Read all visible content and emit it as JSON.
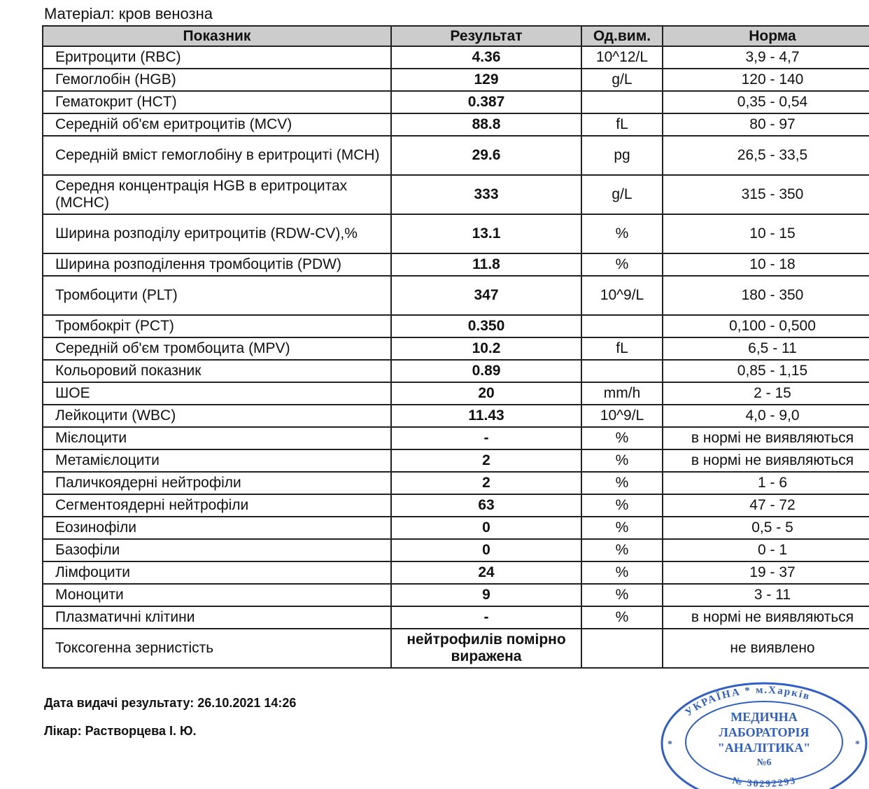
{
  "material": "Матеріал: кров венозна",
  "table": {
    "headers": [
      "Показник",
      "Результат",
      "Од.вим.",
      "Норма"
    ],
    "rows": [
      {
        "name": "Еритроцити (RBC)",
        "result": "4.36",
        "unit": "10^12/L",
        "norm": "3,9 - 4,7",
        "h": 1
      },
      {
        "name": "Гемоглобін (HGB)",
        "result": "129",
        "unit": "g/L",
        "norm": "120 - 140",
        "h": 1
      },
      {
        "name": "Гематокрит (HCT)",
        "result": "0.387",
        "unit": "",
        "norm": "0,35 - 0,54",
        "h": 1
      },
      {
        "name": "Середній об'єм еритроцитів (MCV)",
        "result": "88.8",
        "unit": "fL",
        "norm": "80 - 97",
        "h": 1
      },
      {
        "name": "Середній вміст гемоглобіну в еритроциті (MCH)",
        "result": "29.6",
        "unit": "pg",
        "norm": "26,5 - 33,5",
        "h": 2
      },
      {
        "name": "Середня концентрація HGB в еритроцитах (MCHC)",
        "result": "333",
        "unit": "g/L",
        "norm": "315 - 350",
        "h": 2
      },
      {
        "name": "Ширина розподілу еритроцитів (RDW-CV),%",
        "result": "13.1",
        "unit": "%",
        "norm": "10 - 15",
        "h": 2
      },
      {
        "name": "Ширина розподілення тромбоцитів (PDW)",
        "result": "11.8",
        "unit": "%",
        "norm": "10 - 18",
        "h": 1
      },
      {
        "name": "Тромбоцити (PLT)",
        "result": "347",
        "unit": "10^9/L",
        "norm": "180 - 350",
        "h": 2
      },
      {
        "name": "Тромбокріт (PCT)",
        "result": "0.350",
        "unit": "",
        "norm": "0,100 - 0,500",
        "h": 1
      },
      {
        "name": "Середній об'єм тромбоцита (MPV)",
        "result": "10.2",
        "unit": "fL",
        "norm": "6,5 - 11",
        "h": 1
      },
      {
        "name": "Кольоровий показник",
        "result": "0.89",
        "unit": "",
        "norm": "0,85 - 1,15",
        "h": 1
      },
      {
        "name": "ШОЕ",
        "result": "20",
        "unit": "mm/h",
        "norm": "2 - 15",
        "h": 1
      },
      {
        "name": "Лейкоцити (WBC)",
        "result": "11.43",
        "unit": "10^9/L",
        "norm": "4,0 - 9,0",
        "h": 1
      },
      {
        "name": "Мієлоцити",
        "result": "-",
        "unit": "%",
        "norm": "в нормі не виявляються",
        "h": 1
      },
      {
        "name": "Метамієлоцити",
        "result": "2",
        "unit": "%",
        "norm": "в нормі не виявляються",
        "h": 1
      },
      {
        "name": "Паличкоядерні нейтрофіли",
        "result": "2",
        "unit": "%",
        "norm": "1 - 6",
        "h": 1
      },
      {
        "name": "Сегментоядерні нейтрофіли",
        "result": "63",
        "unit": "%",
        "norm": "47 - 72",
        "h": 1
      },
      {
        "name": "Еозинофіли",
        "result": "0",
        "unit": "%",
        "norm": "0,5 - 5",
        "h": 1
      },
      {
        "name": "Базофіли",
        "result": "0",
        "unit": "%",
        "norm": "0 - 1",
        "h": 1
      },
      {
        "name": "Лімфоцити",
        "result": "24",
        "unit": "%",
        "norm": "19 - 37",
        "h": 1
      },
      {
        "name": "Моноцити",
        "result": "9",
        "unit": "%",
        "norm": "3 - 11",
        "h": 1
      },
      {
        "name": "Плазматичні клітини",
        "result": "-",
        "unit": "%",
        "norm": "в нормі не виявляються",
        "h": 1
      },
      {
        "name": "Токсогенна зернистість",
        "result": "нейтрофилів помірно виражена",
        "unit": "",
        "norm": "не виявлено",
        "h": 2
      }
    ]
  },
  "footer": {
    "issue_date": "Дата видачі результату: 26.10.2021 14:26",
    "doctor": "Лікар: Растворцева І. Ю."
  },
  "stamp": {
    "outer_top": "УКРАЇНА * м.Харків",
    "line1": "МЕДИЧНА",
    "line2": "ЛАБОРАТОРІЯ",
    "line3": "\"АНАЛІТИКА\"",
    "line4": "№6",
    "outer_bottom": "№ 30292293",
    "color": "#2f5fc4"
  }
}
